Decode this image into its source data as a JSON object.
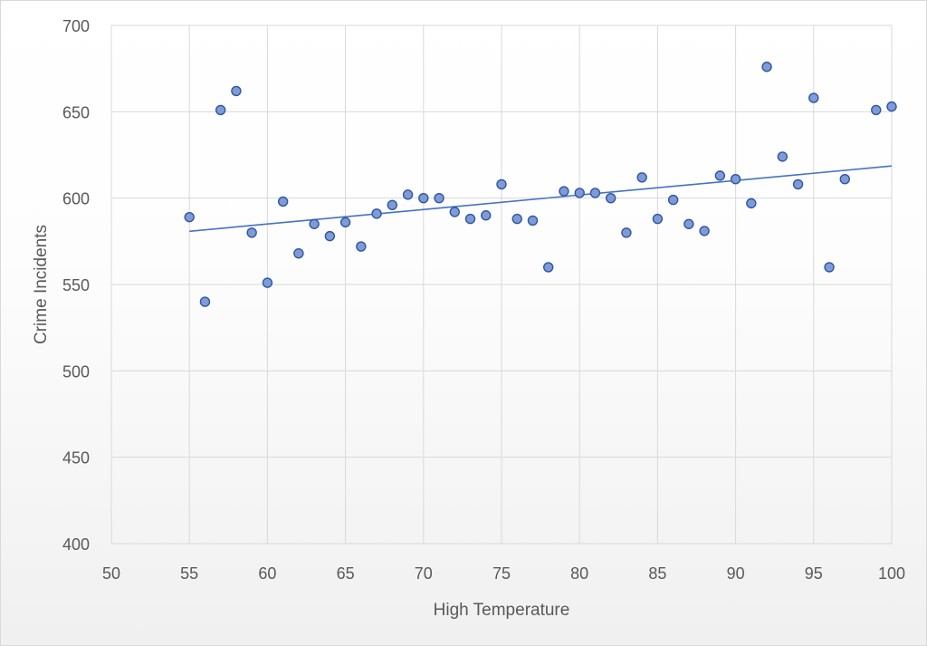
{
  "chart_data": {
    "type": "scatter",
    "title": "",
    "xlabel": "High Temperature",
    "ylabel": "Crime Incidents",
    "xlim": [
      50,
      100
    ],
    "ylim": [
      400,
      700
    ],
    "xticks": [
      50,
      55,
      60,
      65,
      70,
      75,
      80,
      85,
      90,
      95,
      100
    ],
    "yticks": [
      400,
      450,
      500,
      550,
      600,
      650,
      700
    ],
    "grid": true,
    "legend": "none",
    "marker_fill": "#7f9bd6",
    "marker_stroke": "#2f55a4",
    "trendline_color": "#4472c4",
    "points": [
      [
        55,
        589
      ],
      [
        56,
        540
      ],
      [
        57,
        651
      ],
      [
        58,
        662
      ],
      [
        59,
        580
      ],
      [
        60,
        551
      ],
      [
        61,
        598
      ],
      [
        62,
        568
      ],
      [
        63,
        585
      ],
      [
        64,
        578
      ],
      [
        65,
        586
      ],
      [
        66,
        572
      ],
      [
        67,
        591
      ],
      [
        68,
        596
      ],
      [
        69,
        602
      ],
      [
        70,
        600
      ],
      [
        71,
        600
      ],
      [
        72,
        592
      ],
      [
        73,
        588
      ],
      [
        74,
        590
      ],
      [
        75,
        608
      ],
      [
        76,
        588
      ],
      [
        77,
        587
      ],
      [
        78,
        560
      ],
      [
        79,
        604
      ],
      [
        80,
        603
      ],
      [
        81,
        603
      ],
      [
        82,
        600
      ],
      [
        83,
        580
      ],
      [
        84,
        612
      ],
      [
        85,
        588
      ],
      [
        86,
        599
      ],
      [
        87,
        585
      ],
      [
        88,
        581
      ],
      [
        89,
        613
      ],
      [
        90,
        611
      ],
      [
        91,
        597
      ],
      [
        92,
        676
      ],
      [
        93,
        624
      ],
      [
        94,
        608
      ],
      [
        95,
        658
      ],
      [
        96,
        560
      ],
      [
        97,
        611
      ],
      [
        99,
        651
      ],
      [
        100,
        653
      ]
    ],
    "trendline": {
      "type": "linear",
      "from": [
        55,
        580.8
      ],
      "to": [
        100,
        618.6
      ]
    }
  }
}
